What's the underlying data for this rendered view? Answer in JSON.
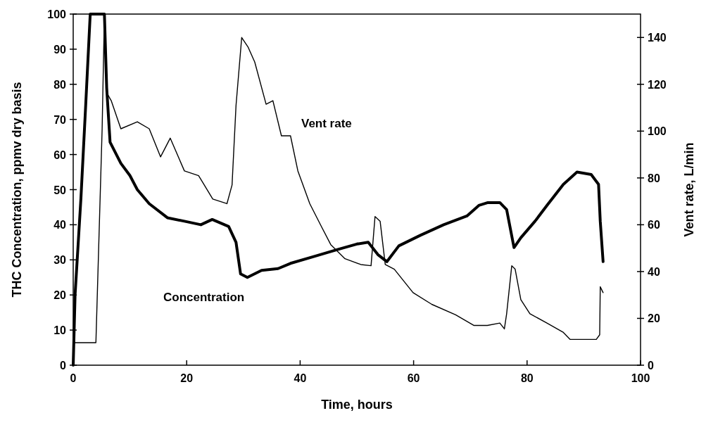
{
  "chart_data": {
    "type": "line",
    "xlabel": "Time, hours",
    "ylabel": "THC Concentration, ppmv dry basis",
    "y2label": "Vent rate, L/min",
    "xlim": [
      0,
      100
    ],
    "xticks": [
      0,
      20,
      40,
      60,
      80,
      100
    ],
    "ylim": [
      0,
      100
    ],
    "yticks": [
      0,
      10,
      20,
      30,
      40,
      50,
      60,
      70,
      80,
      90,
      100
    ],
    "y2lim": [
      0,
      150
    ],
    "y2ticks": [
      0,
      20,
      40,
      60,
      80,
      100,
      120,
      140
    ],
    "grid": false,
    "marker": "none",
    "line_style": "solid",
    "series": [
      {
        "name": "Concentration",
        "color": "#000000",
        "x": [
          0,
          0.33,
          1.36,
          2.2,
          3.0,
          5.5,
          5.9,
          6.5,
          8.4,
          10.0,
          11.3,
          13.4,
          16.6,
          19.6,
          22.5,
          24.5,
          27.4,
          28.7,
          29.5,
          30.7,
          33.2,
          36.1,
          38.3,
          42.5,
          46.7,
          50,
          52,
          53.7,
          55.3,
          57.4,
          61.2,
          65.3,
          69.4,
          71.5,
          73.1,
          75.2,
          76.4,
          77.7,
          78.9,
          81.4,
          83.5,
          86.4,
          88.8,
          91.3,
          92.6,
          92.9,
          93.4
        ],
        "values": [
          0,
          20,
          47.5,
          74,
          100,
          100,
          79,
          63.5,
          57.5,
          54,
          50,
          46,
          42,
          41,
          40,
          41.5,
          39.5,
          35,
          26,
          25,
          27,
          27.5,
          29,
          31,
          33,
          34.5,
          35,
          31.5,
          29.5,
          34,
          37,
          40,
          42.5,
          45.5,
          46.3,
          46.3,
          44.3,
          33.5,
          36.3,
          41,
          45.5,
          51.5,
          55,
          54.3,
          51.5,
          41,
          29.5
        ]
      },
      {
        "name": "Vent rate",
        "color": "#000000",
        "axis": "y2",
        "x": [
          0.1,
          4.0,
          4.5,
          5.1,
          5.5,
          6.0,
          6.7,
          8.4,
          11.3,
          13.4,
          15.4,
          17.1,
          19.6,
          22.1,
          24.6,
          27.1,
          28.0,
          28.7,
          29.7,
          30.8,
          32.0,
          34.0,
          35.2,
          36.7,
          38.3,
          39.6,
          41.7,
          43.8,
          45.4,
          47.9,
          50.7,
          52.5,
          53.2,
          54.1,
          55,
          56.6,
          59.9,
          63.2,
          67.4,
          70.6,
          73,
          75.2,
          76,
          76.4,
          77.3,
          77.9,
          78.9,
          80.5,
          83.5,
          86.4,
          87.6,
          92.2,
          92.8,
          92.9,
          93.4
        ],
        "values": [
          9.6,
          9.6,
          51,
          101,
          150,
          116,
          113,
          101,
          104,
          101,
          89,
          97,
          83,
          81,
          71,
          69,
          77,
          111,
          140,
          136,
          129.5,
          111.5,
          113,
          98,
          98,
          83,
          69,
          59,
          51.5,
          45.5,
          43,
          42.5,
          63.5,
          61.5,
          43,
          41,
          31,
          26,
          21.5,
          17,
          17,
          18,
          15.5,
          22,
          42.5,
          41,
          28,
          22,
          18,
          14,
          11,
          11,
          13,
          33.5,
          31
        ]
      }
    ]
  }
}
